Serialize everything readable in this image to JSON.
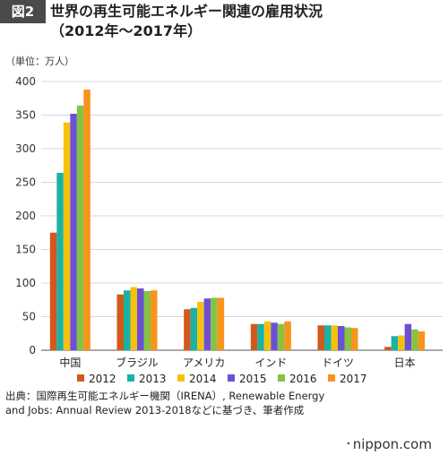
{
  "header": {
    "figure_badge": "図2",
    "title_line1": "世界の再生可能エネルギー関連の雇用状況",
    "title_line2": "（2012年～2017年）"
  },
  "chart_data": {
    "type": "bar",
    "unit_label": "（単位：万人）",
    "categories": [
      "中国",
      "ブラジル",
      "アメリカ",
      "インド",
      "ドイツ",
      "日本"
    ],
    "series": [
      {
        "name": "2012",
        "color": "#d2581b",
        "values": [
          175,
          83,
          61,
          39,
          37,
          5
        ]
      },
      {
        "name": "2013",
        "color": "#18b3a6",
        "values": [
          264,
          89,
          63,
          39,
          37,
          21
        ]
      },
      {
        "name": "2014",
        "color": "#f5c10f",
        "values": [
          339,
          94,
          72,
          43,
          37,
          22
        ]
      },
      {
        "name": "2015",
        "color": "#6d4fd6",
        "values": [
          352,
          92,
          77,
          41,
          36,
          39
        ]
      },
      {
        "name": "2016",
        "color": "#86c341",
        "values": [
          364,
          88,
          78,
          39,
          34,
          31
        ]
      },
      {
        "name": "2017",
        "color": "#f7941d",
        "values": [
          388,
          89,
          78,
          43,
          33,
          28
        ]
      }
    ],
    "ylim": [
      0,
      400
    ],
    "yticks": [
      0,
      50,
      100,
      150,
      200,
      250,
      300,
      350,
      400
    ],
    "grid": true,
    "legend_position": "bottom"
  },
  "footer": {
    "source_text": "出典：国際再生可能エネルギー機関（IRENA）, Renewable Energy and Jobs: Annual Review 2013-2018などに基づき、筆者作成",
    "brand": "nippon.com"
  }
}
